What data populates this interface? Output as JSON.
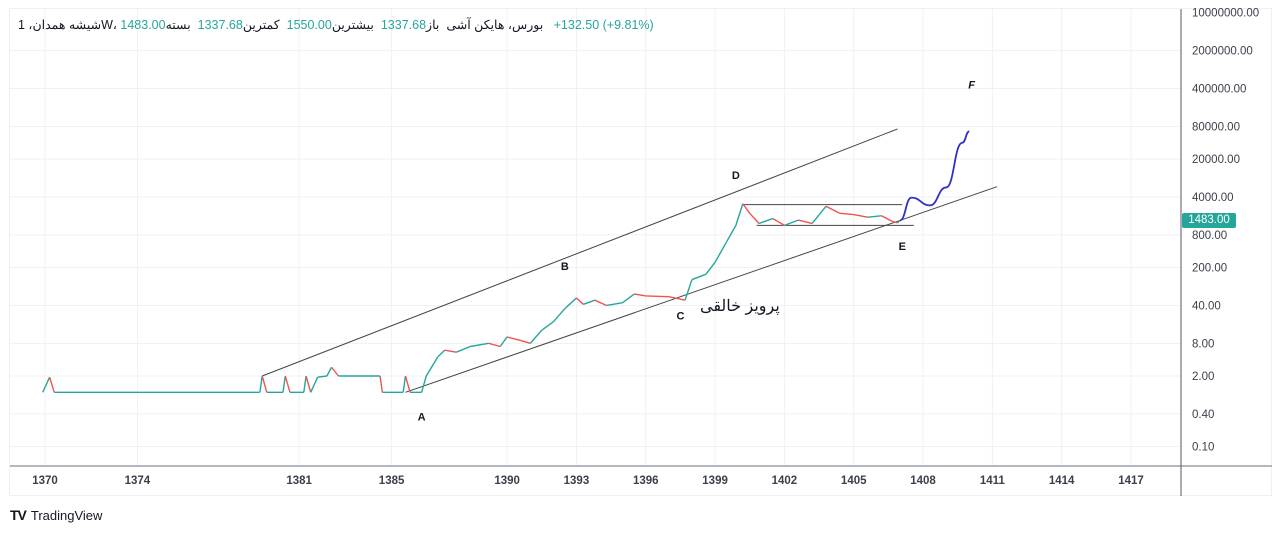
{
  "legend": {
    "symbol": "شیشه همدان، 1W، بورس، هایکن آشی",
    "open_label": "باز",
    "open": "1337.68",
    "high_label": "بیشترین",
    "high": "1550.00",
    "low_label": "کمترین",
    "low": "1337.68",
    "close_label": "بسته",
    "close": "1483.00",
    "change": "+132.50",
    "change_pct": "(+9.81%)"
  },
  "price_tag": "1483.00",
  "author_text": "پرویز خالقی",
  "footer": {
    "logo": "TV",
    "brand": "TradingView"
  },
  "colors": {
    "up": "#26a69a",
    "down": "#ef5350",
    "projection": "#3030c8",
    "lines": "#444444"
  },
  "chart_data": {
    "type": "line",
    "title": "شیشه همدان، 1W، بورس، هایکن آشی",
    "yscale": "log",
    "ylim": [
      0.05,
      10000000
    ],
    "y_ticks": [
      "10000000.00",
      "2000000.00",
      "400000.00",
      "80000.00",
      "20000.00",
      "4000.00",
      "800.00",
      "200.00",
      "40.00",
      "8.00",
      "2.00",
      "0.40",
      "0.10"
    ],
    "x_ticks": [
      "1370",
      "1374",
      "1381",
      "1385",
      "1390",
      "1393",
      "1396",
      "1399",
      "1402",
      "1405",
      "1408",
      "1411",
      "1414",
      "1417"
    ],
    "xlim": [
      1370,
      1419
    ],
    "series": [
      {
        "name": "price",
        "points": [
          [
            1369.9,
            1.0
          ],
          [
            1370.2,
            1.9
          ],
          [
            1370.4,
            1.0
          ],
          [
            1379.3,
            1.0
          ],
          [
            1379.4,
            2.0
          ],
          [
            1379.6,
            1.0
          ],
          [
            1380.3,
            1.0
          ],
          [
            1380.4,
            2.0
          ],
          [
            1380.6,
            1.0
          ],
          [
            1381.2,
            1.0
          ],
          [
            1381.3,
            2.0
          ],
          [
            1381.5,
            1.0
          ],
          [
            1381.8,
            1.9
          ],
          [
            1382.2,
            2.0
          ],
          [
            1382.4,
            2.9
          ],
          [
            1382.7,
            2.0
          ],
          [
            1384.5,
            2.0
          ],
          [
            1384.6,
            1.0
          ],
          [
            1385.5,
            1.0
          ],
          [
            1385.6,
            2.0
          ],
          [
            1385.8,
            1.0
          ],
          [
            1386.3,
            1.0
          ],
          [
            1386.5,
            2.0
          ],
          [
            1387.0,
            4.5
          ],
          [
            1387.3,
            6.0
          ],
          [
            1387.8,
            5.5
          ],
          [
            1388.4,
            7.0
          ],
          [
            1389.2,
            8.0
          ],
          [
            1389.7,
            7.0
          ],
          [
            1390.0,
            10.5
          ],
          [
            1390.6,
            9.0
          ],
          [
            1391.0,
            8.0
          ],
          [
            1391.5,
            14.0
          ],
          [
            1392.0,
            20.0
          ],
          [
            1392.5,
            35.0
          ],
          [
            1393.0,
            55.0
          ],
          [
            1393.3,
            42.0
          ],
          [
            1393.8,
            50.0
          ],
          [
            1394.3,
            40.0
          ],
          [
            1395.0,
            45.0
          ],
          [
            1395.5,
            65.0
          ],
          [
            1396.0,
            60.0
          ],
          [
            1397.0,
            58.0
          ],
          [
            1397.7,
            50.0
          ],
          [
            1398.0,
            120.0
          ],
          [
            1398.6,
            150.0
          ],
          [
            1399.0,
            250.0
          ],
          [
            1399.5,
            600.0
          ],
          [
            1399.9,
            1200.0
          ],
          [
            1400.2,
            3000.0
          ],
          [
            1400.5,
            2000.0
          ],
          [
            1400.9,
            1300.0
          ],
          [
            1401.5,
            1600.0
          ],
          [
            1402.0,
            1200.0
          ],
          [
            1402.6,
            1500.0
          ],
          [
            1403.2,
            1300.0
          ],
          [
            1403.8,
            2700.0
          ],
          [
            1404.4,
            2000.0
          ],
          [
            1405.0,
            1900.0
          ],
          [
            1405.6,
            1700.0
          ],
          [
            1406.2,
            1800.0
          ],
          [
            1406.7,
            1400.0
          ],
          [
            1406.9,
            1337.7
          ],
          [
            1407.0,
            1483.0
          ]
        ]
      },
      {
        "name": "projection",
        "points": [
          [
            1407.0,
            1483.0
          ],
          [
            1407.5,
            3900.0
          ],
          [
            1408.3,
            2800.0
          ],
          [
            1409.0,
            6000.0
          ],
          [
            1409.7,
            40000.0
          ],
          [
            1410.0,
            65000.0
          ]
        ]
      }
    ],
    "trendlines": [
      {
        "name": "channel-upper",
        "from": [
          1379.4,
          2.0
        ],
        "to": [
          1406.9,
          72000.0
        ]
      },
      {
        "name": "channel-lower",
        "from": [
          1385.6,
          1.0
        ],
        "to": [
          1411.2,
          6200.0
        ]
      },
      {
        "name": "range-top",
        "from": [
          1400.2,
          2900.0
        ],
        "to": [
          1407.1,
          2900.0
        ]
      },
      {
        "name": "range-bottom",
        "from": [
          1400.8,
          1200.0
        ],
        "to": [
          1407.6,
          1200.0
        ]
      }
    ],
    "annotations": [
      {
        "label": "A",
        "at": [
          1386.3,
          0.3
        ]
      },
      {
        "label": "B",
        "at": [
          1392.5,
          180.0
        ]
      },
      {
        "label": "C",
        "at": [
          1397.5,
          22.0
        ]
      },
      {
        "label": "D",
        "at": [
          1399.9,
          8500.0
        ]
      },
      {
        "label": "E",
        "at": [
          1407.1,
          420.0
        ]
      },
      {
        "label": "F",
        "at": [
          1410.1,
          400000.0
        ],
        "italic": true
      }
    ]
  }
}
